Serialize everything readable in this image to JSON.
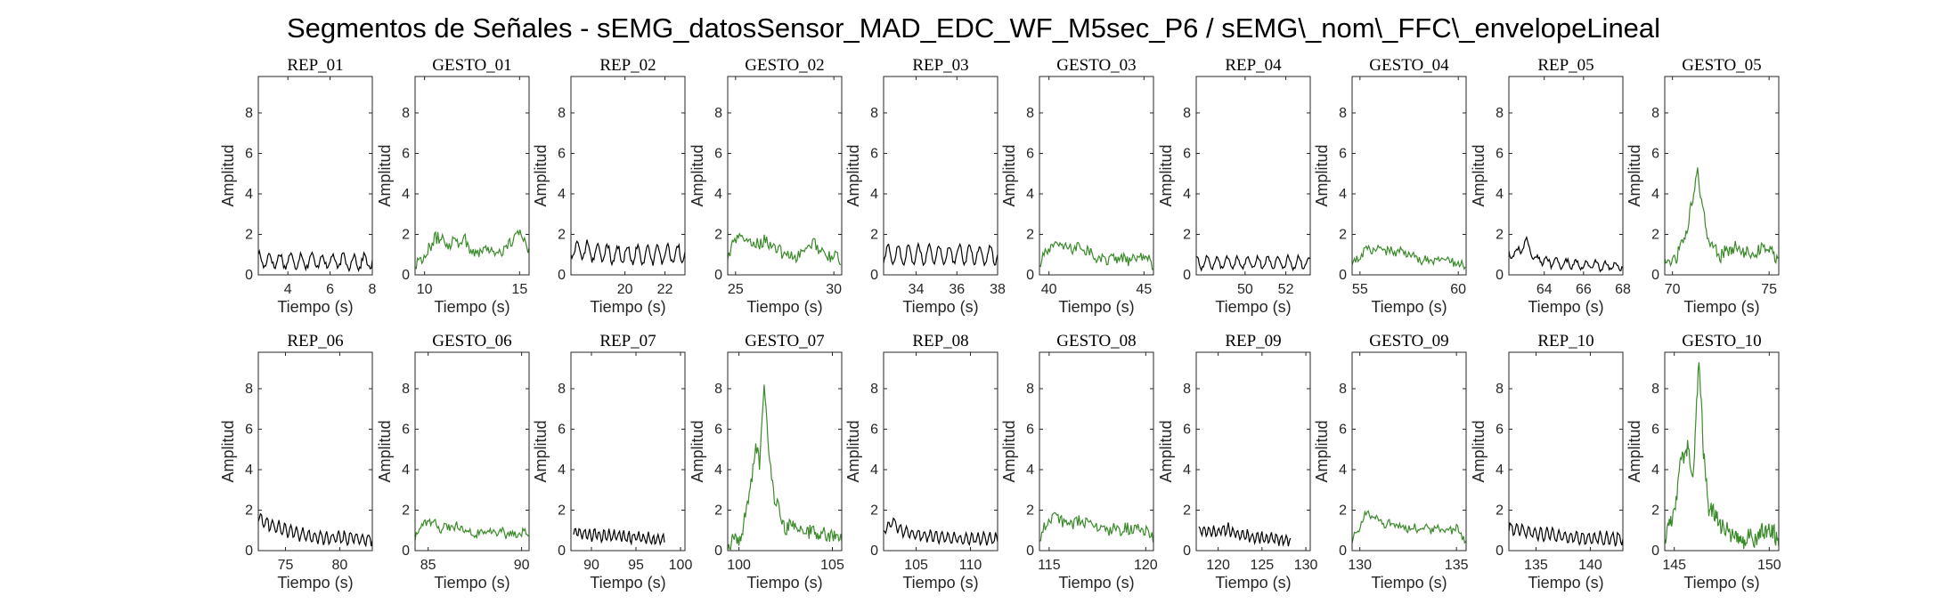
{
  "figure": {
    "title": "Segmentos de Señales - sEMG_datosSensor_MAD_EDC_WF_M5sec_P6 / sEMG\\_nom\\_FFC\\_envelopeLineal"
  },
  "colors": {
    "rep": "#000000",
    "gesto": "#3a8a2a"
  },
  "chart_data": [
    {
      "type": "line",
      "title": "REP_01",
      "series_kind": "rep",
      "xlabel": "Tiempo (s)",
      "ylabel": "Amplitud",
      "xlim": [
        2.6,
        8.0
      ],
      "ylim": [
        0,
        9.8
      ],
      "xticks": [
        4,
        6,
        8
      ],
      "yticks": [
        0,
        2,
        4,
        6,
        8
      ],
      "sampling": {
        "dx": 0.05,
        "noise": 0.15,
        "osc_amp": 0.35,
        "osc_period": 0.5
      },
      "anchors": [
        [
          2.6,
          0.75
        ],
        [
          3.5,
          0.7
        ],
        [
          5.0,
          0.7
        ],
        [
          6.5,
          0.65
        ],
        [
          8.0,
          0.65
        ]
      ]
    },
    {
      "type": "line",
      "title": "GESTO_01",
      "series_kind": "gesto",
      "xlabel": "Tiempo (s)",
      "ylabel": "Amplitud",
      "xlim": [
        9.5,
        15.5
      ],
      "ylim": [
        0,
        9.8
      ],
      "xticks": [
        10,
        15
      ],
      "yticks": [
        0,
        2,
        4,
        6,
        8
      ],
      "sampling": {
        "dx": 0.06,
        "noise": 0.35,
        "osc_amp": 0.1,
        "osc_period": 0.6
      },
      "anchors": [
        [
          9.5,
          0.6
        ],
        [
          10.1,
          1.0
        ],
        [
          10.6,
          1.9
        ],
        [
          11.3,
          1.6
        ],
        [
          12.0,
          1.8
        ],
        [
          12.6,
          1.1
        ],
        [
          13.2,
          1.3
        ],
        [
          14.0,
          1.1
        ],
        [
          14.5,
          1.5
        ],
        [
          15.0,
          2.1
        ],
        [
          15.5,
          1.4
        ]
      ]
    },
    {
      "type": "line",
      "title": "REP_02",
      "series_kind": "rep",
      "xlabel": "Tiempo (s)",
      "ylabel": "Amplitud",
      "xlim": [
        17.3,
        23.0
      ],
      "ylim": [
        0,
        9.8
      ],
      "xticks": [
        20,
        22
      ],
      "yticks": [
        0,
        2,
        4,
        6,
        8
      ],
      "sampling": {
        "dx": 0.05,
        "noise": 0.15,
        "osc_amp": 0.45,
        "osc_period": 0.5
      },
      "anchors": [
        [
          17.3,
          1.3
        ],
        [
          18.5,
          1.1
        ],
        [
          20.0,
          1.0
        ],
        [
          21.5,
          1.0
        ],
        [
          23.0,
          1.1
        ]
      ]
    },
    {
      "type": "line",
      "title": "GESTO_02",
      "series_kind": "gesto",
      "xlabel": "Tiempo (s)",
      "ylabel": "Amplitud",
      "xlim": [
        24.6,
        30.4
      ],
      "ylim": [
        0,
        9.8
      ],
      "xticks": [
        25,
        30
      ],
      "yticks": [
        0,
        2,
        4,
        6,
        8
      ],
      "sampling": {
        "dx": 0.06,
        "noise": 0.3,
        "osc_amp": 0.1,
        "osc_period": 0.6
      },
      "anchors": [
        [
          24.6,
          0.8
        ],
        [
          25.1,
          2.0
        ],
        [
          25.8,
          1.5
        ],
        [
          26.5,
          1.7
        ],
        [
          27.3,
          1.1
        ],
        [
          28.2,
          0.9
        ],
        [
          29.0,
          1.6
        ],
        [
          29.6,
          1.0
        ],
        [
          30.4,
          0.7
        ]
      ]
    },
    {
      "type": "line",
      "title": "REP_03",
      "series_kind": "rep",
      "xlabel": "Tiempo (s)",
      "ylabel": "Amplitud",
      "xlim": [
        32.4,
        38.0
      ],
      "ylim": [
        0,
        9.8
      ],
      "xticks": [
        34,
        36,
        38
      ],
      "yticks": [
        0,
        2,
        4,
        6,
        8
      ],
      "sampling": {
        "dx": 0.05,
        "noise": 0.12,
        "osc_amp": 0.45,
        "osc_period": 0.5
      },
      "anchors": [
        [
          32.4,
          1.0
        ],
        [
          34.0,
          1.0
        ],
        [
          36.0,
          1.0
        ],
        [
          38.0,
          1.0
        ]
      ]
    },
    {
      "type": "line",
      "title": "GESTO_03",
      "series_kind": "gesto",
      "xlabel": "Tiempo (s)",
      "ylabel": "Amplitud",
      "xlim": [
        39.5,
        45.5
      ],
      "ylim": [
        0,
        9.8
      ],
      "xticks": [
        40,
        45
      ],
      "yticks": [
        0,
        2,
        4,
        6,
        8
      ],
      "sampling": {
        "dx": 0.06,
        "noise": 0.25,
        "osc_amp": 0.1,
        "osc_period": 0.6
      },
      "anchors": [
        [
          39.5,
          0.5
        ],
        [
          40.2,
          1.6
        ],
        [
          41.0,
          1.3
        ],
        [
          41.8,
          1.4
        ],
        [
          42.6,
          0.7
        ],
        [
          43.5,
          0.8
        ],
        [
          44.3,
          0.7
        ],
        [
          45.0,
          1.0
        ],
        [
          45.5,
          0.5
        ]
      ]
    },
    {
      "type": "line",
      "title": "REP_04",
      "series_kind": "rep",
      "xlabel": "Tiempo (s)",
      "ylabel": "Amplitud",
      "xlim": [
        47.6,
        53.2
      ],
      "ylim": [
        0,
        9.8
      ],
      "xticks": [
        50,
        52
      ],
      "yticks": [
        0,
        2,
        4,
        6,
        8
      ],
      "sampling": {
        "dx": 0.05,
        "noise": 0.1,
        "osc_amp": 0.3,
        "osc_period": 0.5
      },
      "anchors": [
        [
          47.6,
          0.6
        ],
        [
          50.0,
          0.6
        ],
        [
          53.2,
          0.6
        ]
      ]
    },
    {
      "type": "line",
      "title": "GESTO_04",
      "series_kind": "gesto",
      "xlabel": "Tiempo (s)",
      "ylabel": "Amplitud",
      "xlim": [
        54.6,
        60.4
      ],
      "ylim": [
        0,
        9.8
      ],
      "xticks": [
        55,
        60
      ],
      "yticks": [
        0,
        2,
        4,
        6,
        8
      ],
      "sampling": {
        "dx": 0.06,
        "noise": 0.2,
        "osc_amp": 0.1,
        "osc_period": 0.6
      },
      "anchors": [
        [
          54.6,
          0.4
        ],
        [
          55.3,
          1.3
        ],
        [
          56.3,
          1.2
        ],
        [
          57.3,
          1.1
        ],
        [
          58.2,
          0.7
        ],
        [
          59.2,
          0.8
        ],
        [
          60.4,
          0.4
        ]
      ]
    },
    {
      "type": "line",
      "title": "REP_05",
      "series_kind": "rep",
      "xlabel": "Tiempo (s)",
      "ylabel": "Amplitud",
      "xlim": [
        62.2,
        68.0
      ],
      "ylim": [
        0,
        9.8
      ],
      "xticks": [
        64,
        66,
        68
      ],
      "yticks": [
        0,
        2,
        4,
        6,
        8
      ],
      "sampling": {
        "dx": 0.05,
        "noise": 0.12,
        "osc_amp": 0.2,
        "osc_period": 0.5
      },
      "anchors": [
        [
          62.2,
          1.0
        ],
        [
          62.8,
          1.2
        ],
        [
          63.1,
          1.7
        ],
        [
          63.5,
          0.8
        ],
        [
          64.5,
          0.6
        ],
        [
          66.0,
          0.5
        ],
        [
          68.0,
          0.4
        ]
      ]
    },
    {
      "type": "line",
      "title": "GESTO_05",
      "series_kind": "gesto",
      "xlabel": "Tiempo (s)",
      "ylabel": "Amplitud",
      "xlim": [
        69.6,
        75.5
      ],
      "ylim": [
        0,
        9.8
      ],
      "xticks": [
        70,
        75
      ],
      "yticks": [
        0,
        2,
        4,
        6,
        8
      ],
      "sampling": {
        "dx": 0.05,
        "noise": 0.3,
        "osc_amp": 0.1,
        "osc_period": 0.6
      },
      "anchors": [
        [
          69.6,
          0.6
        ],
        [
          70.2,
          0.8
        ],
        [
          70.7,
          2.0
        ],
        [
          71.0,
          3.5
        ],
        [
          71.3,
          5.1
        ],
        [
          71.6,
          3.0
        ],
        [
          71.9,
          1.6
        ],
        [
          72.5,
          1.0
        ],
        [
          73.3,
          1.4
        ],
        [
          74.0,
          1.0
        ],
        [
          74.8,
          1.3
        ],
        [
          75.5,
          0.7
        ]
      ]
    },
    {
      "type": "line",
      "title": "REP_06",
      "series_kind": "rep",
      "xlabel": "Tiempo (s)",
      "ylabel": "Amplitud",
      "xlim": [
        72.5,
        83.0
      ],
      "ylim": [
        0,
        9.8
      ],
      "xticks": [
        75,
        80
      ],
      "yticks": [
        0,
        2,
        4,
        6,
        8
      ],
      "sampling": {
        "dx": 0.1,
        "noise": 0.12,
        "osc_amp": 0.3,
        "osc_period": 0.55
      },
      "anchors": [
        [
          72.5,
          1.6
        ],
        [
          73.5,
          1.3
        ],
        [
          75.0,
          1.0
        ],
        [
          77.0,
          0.7
        ],
        [
          80.0,
          0.6
        ],
        [
          83.0,
          0.6
        ]
      ]
    },
    {
      "type": "line",
      "title": "GESTO_06",
      "series_kind": "gesto",
      "xlabel": "Tiempo (s)",
      "ylabel": "Amplitud",
      "xlim": [
        84.3,
        90.4
      ],
      "ylim": [
        0,
        9.8
      ],
      "xticks": [
        85,
        90
      ],
      "yticks": [
        0,
        2,
        4,
        6,
        8
      ],
      "sampling": {
        "dx": 0.06,
        "noise": 0.2,
        "osc_amp": 0.1,
        "osc_period": 0.6
      },
      "anchors": [
        [
          84.3,
          0.7
        ],
        [
          85.0,
          1.5
        ],
        [
          85.8,
          1.1
        ],
        [
          86.6,
          1.2
        ],
        [
          87.5,
          0.8
        ],
        [
          88.6,
          0.9
        ],
        [
          89.5,
          0.8
        ],
        [
          90.4,
          0.9
        ]
      ]
    },
    {
      "type": "line",
      "title": "REP_07",
      "series_kind": "rep",
      "xlabel": "Tiempo (s)",
      "ylabel": "Amplitud",
      "xlim": [
        87.7,
        100.5
      ],
      "ylim": [
        0,
        9.8
      ],
      "xticks": [
        90,
        95,
        100
      ],
      "yticks": [
        0,
        2,
        4,
        6,
        8
      ],
      "sampling": {
        "dx": 0.12,
        "noise": 0.12,
        "osc_amp": 0.25,
        "osc_period": 0.55
      },
      "anchors": [
        [
          88.0,
          0.9
        ],
        [
          90.0,
          0.8
        ],
        [
          93.0,
          0.7
        ],
        [
          96.0,
          0.6
        ],
        [
          98.2,
          0.5
        ]
      ]
    },
    {
      "type": "line",
      "title": "GESTO_07",
      "series_kind": "gesto",
      "xlabel": "Tiempo (s)",
      "ylabel": "Amplitud",
      "xlim": [
        99.4,
        105.5
      ],
      "ylim": [
        0,
        9.8
      ],
      "xticks": [
        100,
        105
      ],
      "yticks": [
        0,
        2,
        4,
        6,
        8
      ],
      "sampling": {
        "dx": 0.05,
        "noise": 0.35,
        "osc_amp": 0.1,
        "osc_period": 0.6
      },
      "anchors": [
        [
          99.4,
          0.4
        ],
        [
          100.1,
          0.6
        ],
        [
          100.6,
          3.0
        ],
        [
          100.9,
          5.3
        ],
        [
          101.1,
          4.2
        ],
        [
          101.35,
          8.2
        ],
        [
          101.6,
          4.8
        ],
        [
          101.9,
          2.6
        ],
        [
          102.4,
          1.2
        ],
        [
          103.2,
          1.1
        ],
        [
          104.0,
          0.9
        ],
        [
          104.8,
          0.8
        ],
        [
          105.5,
          0.7
        ]
      ]
    },
    {
      "type": "line",
      "title": "REP_08",
      "series_kind": "rep",
      "xlabel": "Tiempo (s)",
      "ylabel": "Amplitud",
      "xlim": [
        102.0,
        112.5
      ],
      "ylim": [
        0,
        9.8
      ],
      "xticks": [
        105,
        110
      ],
      "yticks": [
        0,
        2,
        4,
        6,
        8
      ],
      "sampling": {
        "dx": 0.1,
        "noise": 0.12,
        "osc_amp": 0.25,
        "osc_period": 0.55
      },
      "anchors": [
        [
          102.0,
          1.0
        ],
        [
          102.8,
          1.5
        ],
        [
          103.5,
          1.0
        ],
        [
          105.0,
          0.8
        ],
        [
          108.0,
          0.6
        ],
        [
          112.5,
          0.6
        ]
      ]
    },
    {
      "type": "line",
      "title": "GESTO_08",
      "series_kind": "gesto",
      "xlabel": "Tiempo (s)",
      "ylabel": "Amplitud",
      "xlim": [
        114.5,
        120.4
      ],
      "ylim": [
        0,
        9.8
      ],
      "xticks": [
        115,
        120
      ],
      "yticks": [
        0,
        2,
        4,
        6,
        8
      ],
      "sampling": {
        "dx": 0.06,
        "noise": 0.3,
        "osc_amp": 0.1,
        "osc_period": 0.6
      },
      "anchors": [
        [
          114.5,
          0.7
        ],
        [
          115.2,
          1.7
        ],
        [
          116.0,
          1.4
        ],
        [
          117.0,
          1.5
        ],
        [
          118.0,
          1.0
        ],
        [
          119.0,
          1.1
        ],
        [
          119.8,
          1.0
        ],
        [
          120.4,
          0.7
        ]
      ]
    },
    {
      "type": "line",
      "title": "REP_09",
      "series_kind": "rep",
      "xlabel": "Tiempo (s)",
      "ylabel": "Amplitud",
      "xlim": [
        117.5,
        130.5
      ],
      "ylim": [
        0,
        9.8
      ],
      "xticks": [
        120,
        125,
        130
      ],
      "yticks": [
        0,
        2,
        4,
        6,
        8
      ],
      "sampling": {
        "dx": 0.12,
        "noise": 0.12,
        "osc_amp": 0.25,
        "osc_period": 0.55
      },
      "anchors": [
        [
          117.8,
          1.0
        ],
        [
          120.0,
          0.9
        ],
        [
          121.0,
          1.1
        ],
        [
          123.0,
          0.7
        ],
        [
          126.0,
          0.6
        ],
        [
          128.3,
          0.5
        ]
      ]
    },
    {
      "type": "line",
      "title": "GESTO_09",
      "series_kind": "gesto",
      "xlabel": "Tiempo (s)",
      "ylabel": "Amplitud",
      "xlim": [
        129.6,
        135.5
      ],
      "ylim": [
        0,
        9.8
      ],
      "xticks": [
        130,
        135
      ],
      "yticks": [
        0,
        2,
        4,
        6,
        8
      ],
      "sampling": {
        "dx": 0.06,
        "noise": 0.2,
        "osc_amp": 0.1,
        "osc_period": 0.6
      },
      "anchors": [
        [
          129.6,
          0.4
        ],
        [
          130.3,
          1.8
        ],
        [
          131.2,
          1.4
        ],
        [
          132.2,
          1.2
        ],
        [
          133.2,
          1.1
        ],
        [
          134.2,
          1.0
        ],
        [
          135.0,
          1.1
        ],
        [
          135.5,
          0.4
        ]
      ]
    },
    {
      "type": "line",
      "title": "REP_10",
      "series_kind": "rep",
      "xlabel": "Tiempo (s)",
      "ylabel": "Amplitud",
      "xlim": [
        132.5,
        143.0
      ],
      "ylim": [
        0,
        9.8
      ],
      "xticks": [
        135,
        140
      ],
      "yticks": [
        0,
        2,
        4,
        6,
        8
      ],
      "sampling": {
        "dx": 0.1,
        "noise": 0.12,
        "osc_amp": 0.3,
        "osc_period": 0.55
      },
      "anchors": [
        [
          132.5,
          1.1
        ],
        [
          134.0,
          1.0
        ],
        [
          136.0,
          0.8
        ],
        [
          139.0,
          0.6
        ],
        [
          143.0,
          0.6
        ]
      ]
    },
    {
      "type": "line",
      "title": "GESTO_10",
      "series_kind": "gesto",
      "xlabel": "Tiempo (s)",
      "ylabel": "Amplitud",
      "xlim": [
        144.5,
        150.5
      ],
      "ylim": [
        0,
        9.8
      ],
      "xticks": [
        145,
        150
      ],
      "yticks": [
        0,
        2,
        4,
        6,
        8
      ],
      "sampling": {
        "dx": 0.04,
        "noise": 0.45,
        "osc_amp": 0.1,
        "osc_period": 0.6
      },
      "anchors": [
        [
          144.5,
          0.6
        ],
        [
          144.9,
          1.4
        ],
        [
          145.3,
          4.0
        ],
        [
          145.7,
          5.3
        ],
        [
          146.0,
          3.6
        ],
        [
          146.3,
          9.8
        ],
        [
          146.55,
          4.6
        ],
        [
          146.8,
          2.2
        ],
        [
          147.3,
          1.4
        ],
        [
          147.8,
          0.9
        ],
        [
          148.5,
          0.6
        ],
        [
          149.3,
          0.7
        ],
        [
          150.0,
          1.0
        ],
        [
          150.5,
          0.6
        ]
      ]
    }
  ]
}
